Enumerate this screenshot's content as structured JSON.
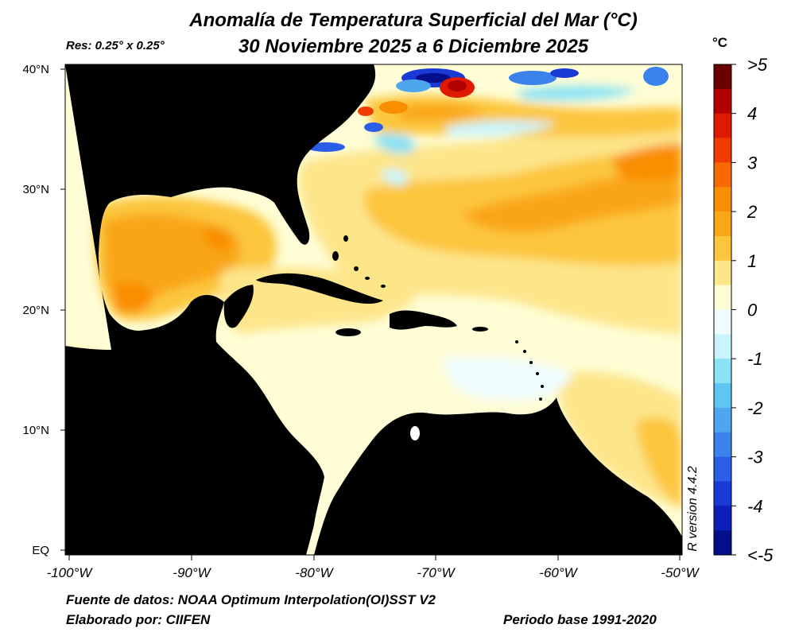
{
  "title_line1": "Anomalía de Temperatura Superficial del Mar (°C)",
  "title_line2": "30 Noviembre 2025 a 6 Diciembre 2025",
  "resolution": "Res: 0.25° x 0.25°",
  "unit": "°C",
  "map": {
    "lat_labels": [
      "40°N",
      "30°N",
      "20°N",
      "10°N",
      "EQ"
    ],
    "lon_labels": [
      "-100°W",
      "-90°W",
      "-80°W",
      "-70°W",
      "-60°W",
      "-50°W"
    ],
    "extent": {
      "lon": [
        -100.3,
        -49.5
      ],
      "lat": [
        -0.3,
        40.5
      ]
    }
  },
  "colorbar": {
    "labels": [
      ">5",
      "4",
      "3",
      "2",
      "1",
      "0",
      "-1",
      "-2",
      "-3",
      "-4",
      "<-5"
    ],
    "colors": [
      "#6a0000",
      "#b30000",
      "#e01a00",
      "#f03c00",
      "#f86a00",
      "#f98e00",
      "#f9a619",
      "#fcc63c",
      "#fde58a",
      "#fefdd5",
      "#f0fdff",
      "#c8f5fd",
      "#8ae2f6",
      "#5ec6f2",
      "#4fa6ef",
      "#3b82ec",
      "#2a5ee8",
      "#1a3ad6",
      "#0c1fb8",
      "#050e8a"
    ]
  },
  "footer": {
    "source": "Fuente de datos: NOAA Optimum Interpolation(OI)SST V2",
    "author": "Elaborado por: CIIFEN",
    "base_period": "Periodo base 1991-2020"
  },
  "version": "R version 4.4.2"
}
